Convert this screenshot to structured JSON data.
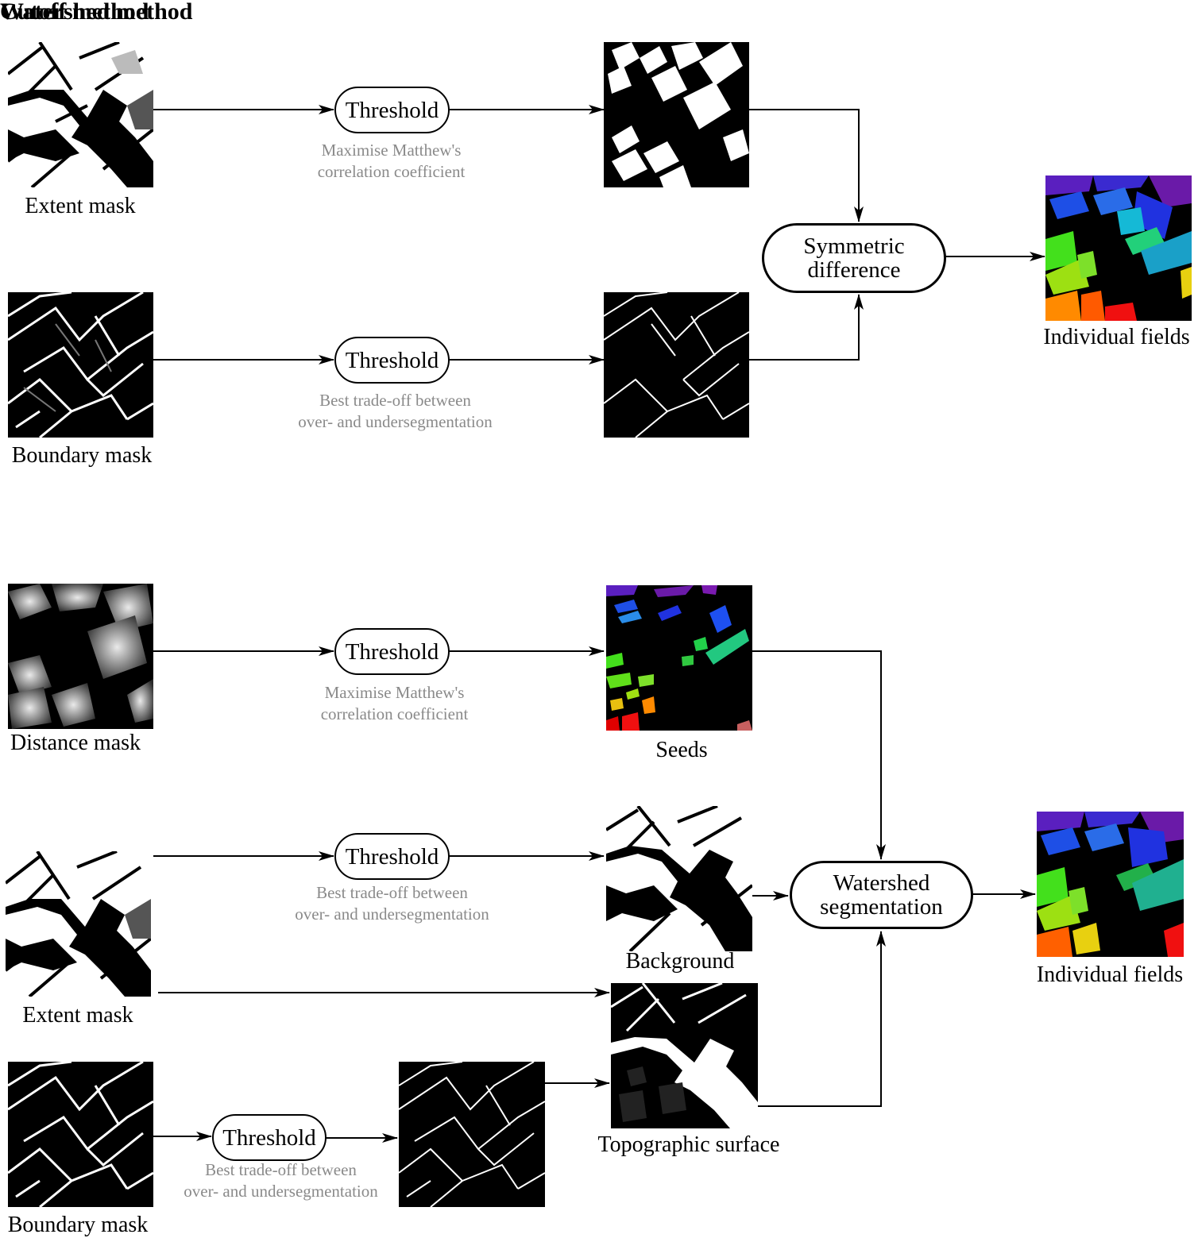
{
  "cutoff": {
    "title": "Cutoff method",
    "extent_caption": "Extent mask",
    "boundary_caption": "Boundary mask",
    "threshold1_label": "Threshold",
    "threshold1_note": [
      "Maximise Matthew's",
      "correlation coefficient"
    ],
    "threshold2_label": "Threshold",
    "threshold2_note": [
      "Best trade-off between",
      "over- and undersegmentation"
    ],
    "combine_label": [
      "Symmetric",
      "difference"
    ],
    "output_caption": "Individual fields"
  },
  "watershed": {
    "title": "Watershed method",
    "distance_caption": "Distance mask",
    "extent_caption": "Extent mask",
    "boundary_caption": "Boundary mask",
    "threshold1_label": "Threshold",
    "threshold1_note": [
      "Maximise Matthew's",
      "correlation coefficient"
    ],
    "threshold2_label": "Threshold",
    "threshold2_note": [
      "Best trade-off between",
      "over- and undersegmentation"
    ],
    "threshold3_label": "Threshold",
    "threshold3_note": [
      "Best trade-off between",
      "over- and undersegmentation"
    ],
    "seeds_caption": "Seeds",
    "background_caption": "Background",
    "topographic_caption": "Topographic surface",
    "combine_label": [
      "Watershed",
      "segmentation"
    ],
    "output_caption": "Individual fields"
  },
  "colors": {
    "line": "#000000",
    "note": "#8a8a8a",
    "background": "#ffffff"
  }
}
